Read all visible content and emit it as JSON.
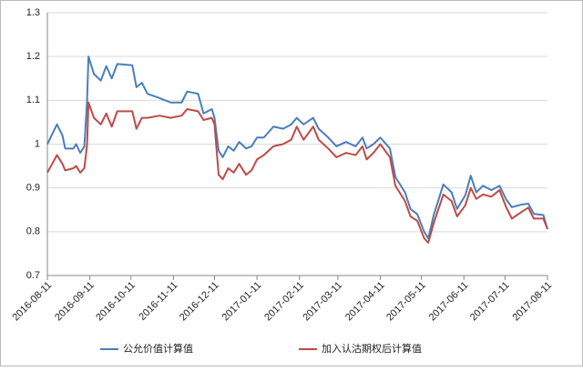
{
  "chart_data": {
    "type": "line",
    "x": [
      "2016-08-11",
      "2016-08-18",
      "2016-08-22",
      "2016-08-24",
      "2016-08-30",
      "2016-09-01",
      "2016-09-04",
      "2016-09-07",
      "2016-09-09",
      "2016-09-10",
      "2016-09-14",
      "2016-09-19",
      "2016-09-23",
      "2016-09-27",
      "2016-10-01",
      "2016-10-12",
      "2016-10-15",
      "2016-10-19",
      "2016-10-23",
      "2016-11-01",
      "2016-11-09",
      "2016-11-17",
      "2016-11-21",
      "2016-11-29",
      "2016-12-03",
      "2016-12-09",
      "2016-12-11",
      "2016-12-14",
      "2016-12-17",
      "2016-12-21",
      "2016-12-25",
      "2016-12-29",
      "2017-01-03",
      "2017-01-07",
      "2017-01-11",
      "2017-01-16",
      "2017-01-23",
      "2017-01-30",
      "2017-02-05",
      "2017-02-09",
      "2017-02-14",
      "2017-02-21",
      "2017-02-25",
      "2017-03-04",
      "2017-03-10",
      "2017-03-17",
      "2017-03-24",
      "2017-03-29",
      "2017-04-01",
      "2017-04-06",
      "2017-04-11",
      "2017-04-18",
      "2017-04-22",
      "2017-04-29",
      "2017-05-03",
      "2017-05-08",
      "2017-05-13",
      "2017-05-16",
      "2017-05-20",
      "2017-05-27",
      "2017-06-02",
      "2017-06-06",
      "2017-06-12",
      "2017-06-16",
      "2017-06-20",
      "2017-06-25",
      "2017-07-01",
      "2017-07-07",
      "2017-07-12",
      "2017-07-16",
      "2017-07-23",
      "2017-07-28",
      "2017-08-01",
      "2017-08-08",
      "2017-08-11"
    ],
    "series": [
      {
        "name": "公允价值计算值",
        "color": "#4a7ebb",
        "values": [
          1.0,
          1.045,
          1.02,
          0.99,
          0.99,
          1.0,
          0.98,
          0.995,
          1.1,
          1.2,
          1.16,
          1.145,
          1.178,
          1.15,
          1.183,
          1.18,
          1.13,
          1.14,
          1.115,
          1.105,
          1.095,
          1.095,
          1.12,
          1.115,
          1.07,
          1.08,
          1.06,
          0.985,
          0.97,
          0.995,
          0.985,
          1.005,
          0.99,
          0.995,
          1.015,
          1.015,
          1.04,
          1.035,
          1.045,
          1.06,
          1.045,
          1.06,
          1.035,
          1.015,
          0.995,
          1.005,
          0.995,
          1.015,
          0.99,
          1.0,
          1.015,
          0.99,
          0.925,
          0.89,
          0.852,
          0.84,
          0.8,
          0.785,
          0.838,
          0.908,
          0.89,
          0.852,
          0.883,
          0.928,
          0.89,
          0.905,
          0.895,
          0.905,
          0.873,
          0.856,
          0.862,
          0.864,
          0.841,
          0.838,
          0.806
        ]
      },
      {
        "name": "加入认沽期权后计算值",
        "color": "#be4b48",
        "values": [
          0.935,
          0.975,
          0.955,
          0.94,
          0.945,
          0.95,
          0.935,
          0.945,
          1.0,
          1.095,
          1.06,
          1.045,
          1.07,
          1.04,
          1.075,
          1.075,
          1.035,
          1.06,
          1.06,
          1.065,
          1.06,
          1.065,
          1.08,
          1.075,
          1.055,
          1.06,
          1.045,
          0.93,
          0.92,
          0.945,
          0.935,
          0.955,
          0.93,
          0.94,
          0.965,
          0.975,
          0.995,
          1.0,
          1.01,
          1.04,
          1.01,
          1.04,
          1.01,
          0.99,
          0.97,
          0.98,
          0.975,
          0.995,
          0.965,
          0.98,
          1.0,
          0.97,
          0.905,
          0.87,
          0.835,
          0.825,
          0.785,
          0.775,
          0.82,
          0.885,
          0.87,
          0.835,
          0.86,
          0.9,
          0.875,
          0.885,
          0.88,
          0.895,
          0.855,
          0.83,
          0.845,
          0.855,
          0.83,
          0.83,
          0.806
        ]
      }
    ],
    "xlim": [
      "2016-08-11",
      "2017-08-11"
    ],
    "xticks": [
      "2016-08-11",
      "2016-09-11",
      "2016-10-11",
      "2016-11-11",
      "2016-12-11",
      "2017-01-11",
      "2017-02-11",
      "2017-03-11",
      "2017-04-11",
      "2017-05-11",
      "2017-06-11",
      "2017-07-11",
      "2017-08-11"
    ],
    "ylim": [
      0.7,
      1.3
    ],
    "yticks": [
      0.7,
      0.8,
      0.9,
      1,
      1.1,
      1.2,
      1.3
    ],
    "grid": true,
    "legend": "bottom"
  }
}
